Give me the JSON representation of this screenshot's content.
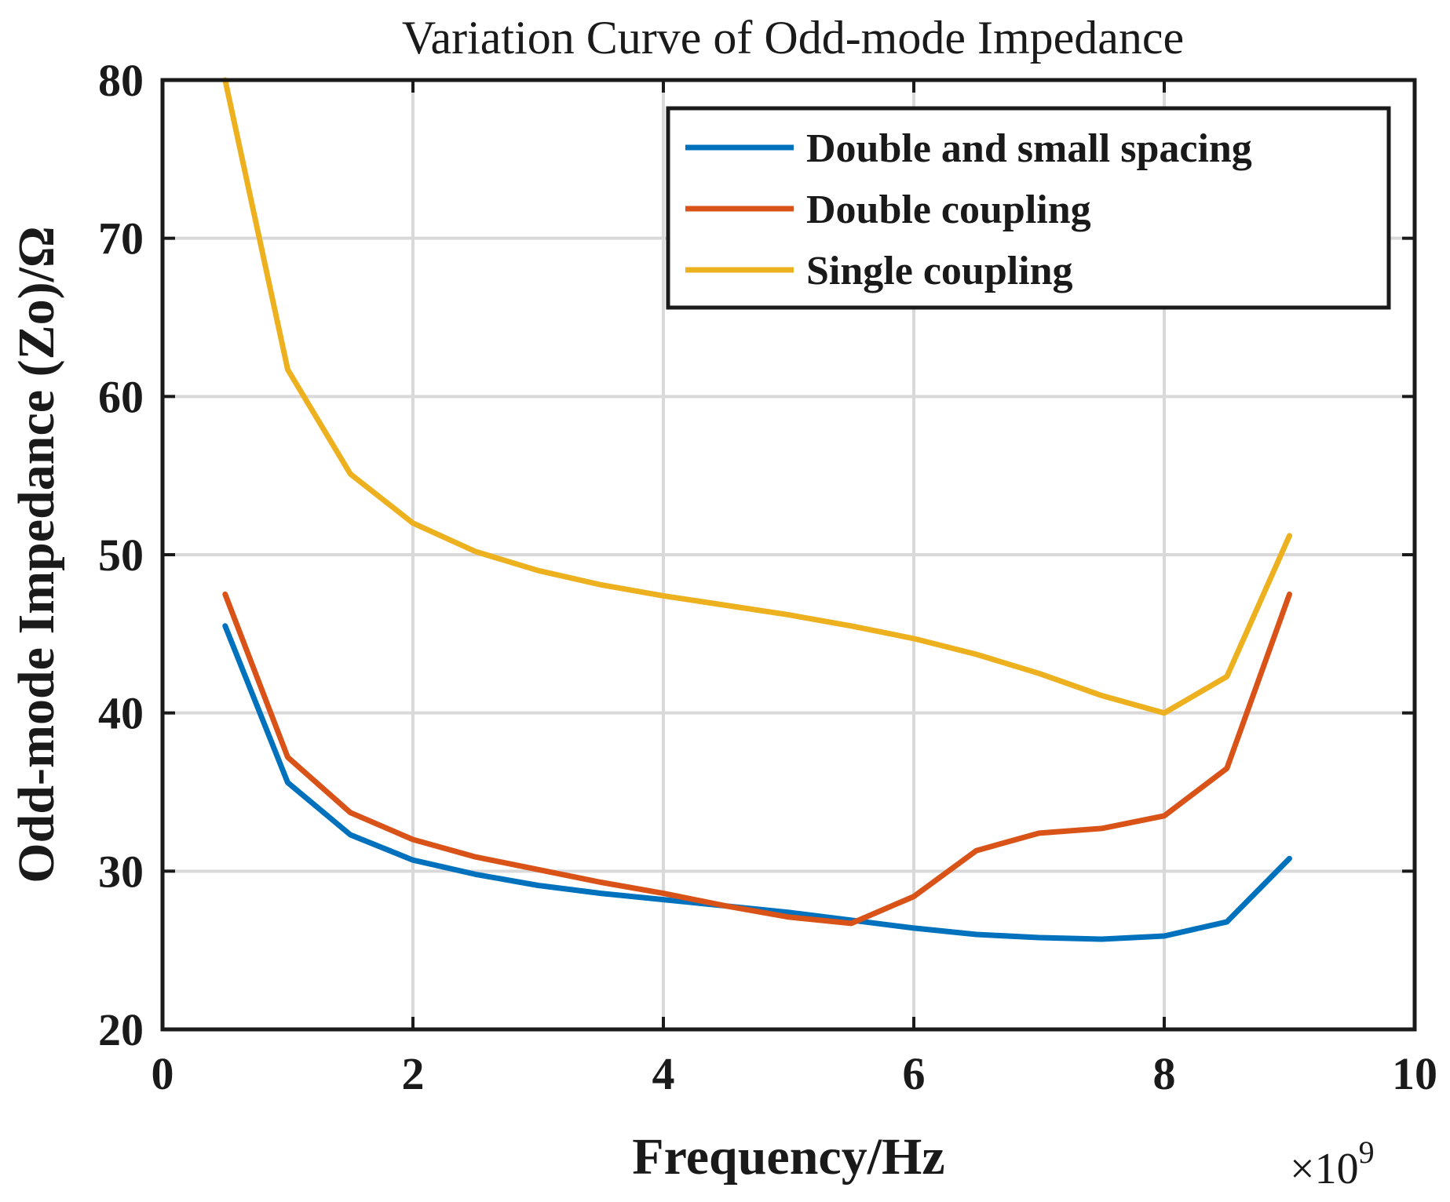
{
  "chart_data": {
    "type": "line",
    "title": "Variation Curve of Odd-mode Impedance",
    "xlabel": "Frequency/Hz",
    "ylabel": "Odd-mode Impedance (Zo)/Ω",
    "x_multiplier_base": "×10",
    "x_multiplier_exponent": "9",
    "xlim": [
      0,
      10
    ],
    "ylim": [
      20,
      80
    ],
    "xticks": [
      0,
      2,
      4,
      6,
      8,
      10
    ],
    "xtick_labels": [
      "0",
      "2",
      "4",
      "6",
      "8",
      "10"
    ],
    "yticks": [
      20,
      30,
      40,
      50,
      60,
      70,
      80
    ],
    "ytick_labels": [
      "20",
      "30",
      "40",
      "50",
      "60",
      "70",
      "80"
    ],
    "grid": true,
    "legend_position": "top-right",
    "x": [
      0.5,
      1.0,
      1.5,
      2.0,
      2.5,
      3.0,
      3.5,
      4.0,
      4.5,
      5.0,
      5.5,
      6.0,
      6.5,
      7.0,
      7.5,
      8.0,
      8.5,
      9.0
    ],
    "series": [
      {
        "name": "Double and small spacing",
        "color": "#0072BD",
        "values": [
          45.5,
          35.6,
          32.3,
          30.7,
          29.8,
          29.1,
          28.6,
          28.2,
          27.8,
          27.4,
          26.9,
          26.4,
          26.0,
          25.8,
          25.7,
          25.9,
          26.8,
          30.8
        ]
      },
      {
        "name": "Double coupling",
        "color": "#D95319",
        "values": [
          47.5,
          37.2,
          33.7,
          32.0,
          30.9,
          30.1,
          29.3,
          28.6,
          27.8,
          27.1,
          26.7,
          28.4,
          31.3,
          32.4,
          32.7,
          33.5,
          36.5,
          47.5
        ]
      },
      {
        "name": "Single coupling",
        "color": "#EDB120",
        "values": [
          80.0,
          61.7,
          55.1,
          52.0,
          50.2,
          49.0,
          48.1,
          47.4,
          46.8,
          46.2,
          45.5,
          44.7,
          43.7,
          42.5,
          41.1,
          40.0,
          42.3,
          51.2
        ]
      }
    ]
  }
}
